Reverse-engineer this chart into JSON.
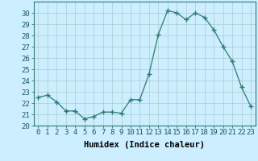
{
  "x": [
    0,
    1,
    2,
    3,
    4,
    5,
    6,
    7,
    8,
    9,
    10,
    11,
    12,
    13,
    14,
    15,
    16,
    17,
    18,
    19,
    20,
    21,
    22,
    23
  ],
  "y": [
    22.5,
    22.7,
    22.1,
    21.3,
    21.3,
    20.6,
    20.8,
    21.2,
    21.2,
    21.1,
    22.3,
    22.3,
    24.6,
    28.1,
    30.2,
    30.0,
    29.4,
    30.0,
    29.6,
    28.5,
    27.0,
    25.7,
    23.4,
    21.7
  ],
  "line_color": "#2d7a70",
  "marker": "+",
  "marker_size": 4,
  "bg_color": "#cceeff",
  "grid_color": "#aacccc",
  "xlabel": "Humidex (Indice chaleur)",
  "xlim": [
    -0.5,
    23.5
  ],
  "ylim": [
    20,
    31
  ],
  "yticks": [
    20,
    21,
    22,
    23,
    24,
    25,
    26,
    27,
    28,
    29,
    30
  ],
  "xticks": [
    0,
    1,
    2,
    3,
    4,
    5,
    6,
    7,
    8,
    9,
    10,
    11,
    12,
    13,
    14,
    15,
    16,
    17,
    18,
    19,
    20,
    21,
    22,
    23
  ],
  "xtick_labels": [
    "0",
    "1",
    "2",
    "3",
    "4",
    "5",
    "6",
    "7",
    "8",
    "9",
    "10",
    "11",
    "12",
    "13",
    "14",
    "15",
    "16",
    "17",
    "18",
    "19",
    "20",
    "21",
    "22",
    "23"
  ],
  "tick_fontsize": 6.5,
  "xlabel_fontsize": 7.5
}
